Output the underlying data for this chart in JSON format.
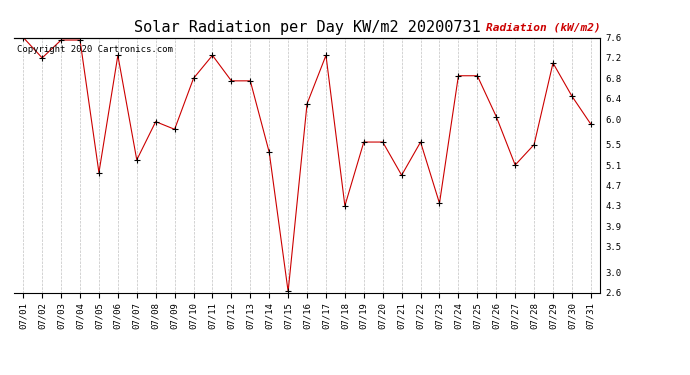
{
  "title": "Solar Radiation per Day KW/m2 20200731",
  "copyright_text": "Copyright 2020 Cartronics.com",
  "legend_label": "Radiation (kW/m2)",
  "dates": [
    "07/01",
    "07/02",
    "07/03",
    "07/04",
    "07/05",
    "07/06",
    "07/07",
    "07/08",
    "07/09",
    "07/10",
    "07/11",
    "07/12",
    "07/13",
    "07/14",
    "07/15",
    "07/16",
    "07/17",
    "07/18",
    "07/19",
    "07/20",
    "07/21",
    "07/22",
    "07/23",
    "07/24",
    "07/25",
    "07/26",
    "07/27",
    "07/28",
    "07/29",
    "07/30",
    "07/31"
  ],
  "values": [
    7.6,
    7.2,
    7.55,
    7.55,
    4.95,
    7.25,
    5.2,
    5.95,
    5.8,
    6.8,
    7.25,
    6.75,
    6.75,
    5.35,
    2.62,
    6.3,
    7.25,
    4.3,
    5.55,
    5.55,
    4.9,
    5.55,
    4.35,
    6.85,
    6.85,
    6.05,
    5.1,
    5.5,
    7.1,
    6.45,
    5.9
  ],
  "ylim": [
    2.6,
    7.6
  ],
  "yticks": [
    2.6,
    3.0,
    3.5,
    3.9,
    4.3,
    4.7,
    5.1,
    5.5,
    6.0,
    6.4,
    6.8,
    7.2,
    7.6
  ],
  "line_color": "#cc0000",
  "marker_color": "black",
  "grid_color": "#bbbbbb",
  "bg_color": "#ffffff",
  "title_fontsize": 11,
  "copyright_fontsize": 6.5,
  "legend_fontsize": 8,
  "tick_fontsize": 6.5,
  "right_ylabel_color": "#cc0000"
}
